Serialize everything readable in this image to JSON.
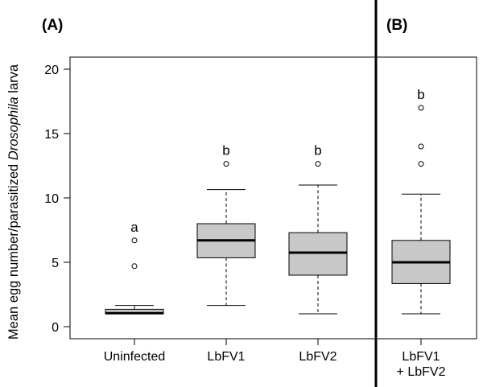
{
  "chart_data": {
    "type": "boxplot",
    "ylabel": {
      "prefix": "Mean egg number/parasitized ",
      "italic": "Drosophila",
      "suffix": " larva"
    },
    "ylim": [
      0,
      20
    ],
    "yticks": [
      0,
      5,
      10,
      15,
      20
    ],
    "panels": [
      {
        "label": "(A)"
      },
      {
        "label": "(B)"
      }
    ],
    "groups": [
      {
        "category": [
          "Uninfected"
        ],
        "panel": 0,
        "whisker_low": 1.0,
        "q1": 1.0,
        "median": 1.05,
        "q3": 1.35,
        "whisker_high": 1.65,
        "outliers": [
          4.7,
          6.7
        ],
        "significance": "a"
      },
      {
        "category": [
          "LbFV1"
        ],
        "panel": 0,
        "whisker_low": 1.65,
        "q1": 5.35,
        "median": 6.7,
        "q3": 8.0,
        "whisker_high": 10.65,
        "outliers": [
          12.65
        ],
        "significance": "b"
      },
      {
        "category": [
          "LbFV2"
        ],
        "panel": 0,
        "whisker_low": 1.0,
        "q1": 4.0,
        "median": 5.75,
        "q3": 7.3,
        "whisker_high": 11.0,
        "outliers": [
          12.65
        ],
        "significance": "b"
      },
      {
        "category": [
          "LbFV1",
          "+ LbFV2"
        ],
        "panel": 1,
        "whisker_low": 1.0,
        "q1": 3.35,
        "median": 5.0,
        "q3": 6.7,
        "whisker_high": 10.3,
        "outliers": [
          12.65,
          14.0,
          17.0
        ],
        "significance": "b"
      }
    ],
    "box_color": "#c8c8c8",
    "grid": false
  }
}
